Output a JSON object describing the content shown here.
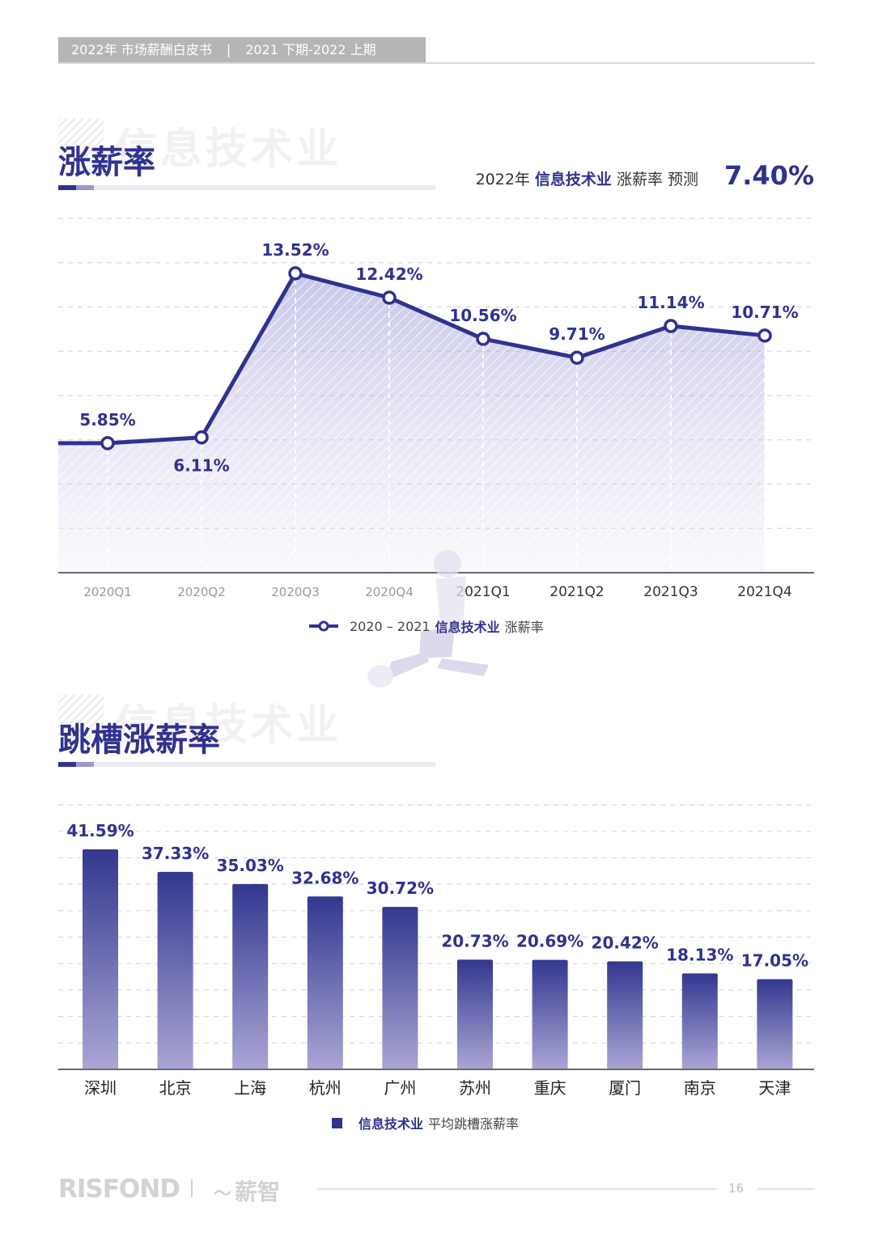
{
  "header": {
    "left": "2022年 市场薪酬白皮书",
    "separator": "|",
    "right": "2021 下期-2022 上期"
  },
  "section1": {
    "ghost": "信息技术业",
    "title": "涨薪率",
    "forecast": {
      "year": "2022年",
      "industry": "信息技术业",
      "label": "涨薪率 预测",
      "value": "7.40%"
    },
    "legend": {
      "years": "2020 – 2021",
      "industry": "信息技术业",
      "label": "涨薪率"
    }
  },
  "section2": {
    "ghost": "信息技术业",
    "title": "跳槽涨薪率",
    "legend": {
      "industry": "信息技术业",
      "label": "平均跳槽涨薪率"
    }
  },
  "chart_data": [
    {
      "type": "line",
      "categories": [
        "2020Q1",
        "2020Q2",
        "2020Q3",
        "2020Q4",
        "2021Q1",
        "2021Q2",
        "2021Q3",
        "2021Q4"
      ],
      "values": [
        5.85,
        6.11,
        13.52,
        12.42,
        10.56,
        9.71,
        11.14,
        10.71
      ],
      "labels": [
        "5.85%",
        "6.11%",
        "13.52%",
        "12.42%",
        "10.56%",
        "9.71%",
        "11.14%",
        "10.71%"
      ],
      "series_name": "2020 – 2021 信息技术业 涨薪率",
      "ylim": [
        0,
        16
      ],
      "grid": true,
      "legend": "bottom-center",
      "color": "#2f3290"
    },
    {
      "type": "bar",
      "categories": [
        "深圳",
        "北京",
        "上海",
        "杭州",
        "广州",
        "苏州",
        "重庆",
        "厦门",
        "南京",
        "天津"
      ],
      "values": [
        41.59,
        37.33,
        35.03,
        32.68,
        30.72,
        20.73,
        20.69,
        20.42,
        18.13,
        17.05
      ],
      "labels": [
        "41.59%",
        "37.33%",
        "35.03%",
        "32.68%",
        "30.72%",
        "20.73%",
        "20.69%",
        "20.42%",
        "18.13%",
        "17.05%"
      ],
      "series_name": "信息技术业 平均跳槽涨薪率",
      "ylim": [
        0,
        50
      ],
      "grid": true,
      "legend": "bottom-center",
      "color": "#2f3290"
    }
  ],
  "footer": {
    "logo1": "RISFOND",
    "logo2": "薪智",
    "page": "16"
  }
}
